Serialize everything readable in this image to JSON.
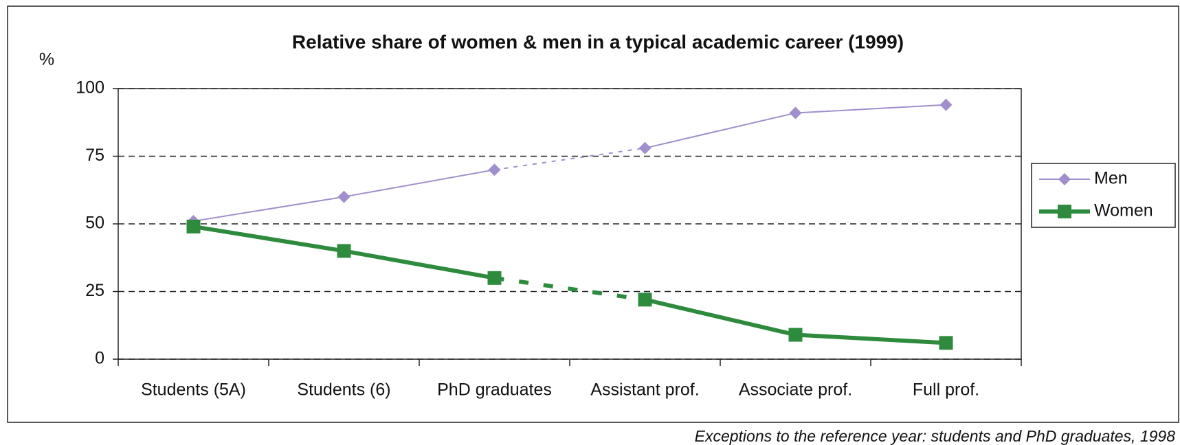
{
  "chart_data": {
    "type": "line",
    "title": "Relative share of women & men in a typical academic career (1999)",
    "ylabel": "%",
    "note": "Exceptions to the reference year: students and PhD graduates, 1998",
    "categories": [
      "Students (5A)",
      "Students (6)",
      "PhD graduates",
      "Assistant prof.",
      "Associate prof.",
      "Full prof."
    ],
    "series": [
      {
        "name": "Men",
        "color": "#a08fcc",
        "marker": "diamond",
        "width": 2,
        "values": [
          51,
          60,
          70,
          78,
          91,
          94
        ]
      },
      {
        "name": "Women",
        "color": "#2e8b3e",
        "marker": "square",
        "width": 6,
        "values": [
          49,
          40,
          30,
          22,
          9,
          6
        ]
      }
    ],
    "dashed_segment": [
      2,
      3
    ],
    "ylim": [
      0,
      100
    ],
    "yticks": [
      0,
      25,
      50,
      75,
      100
    ],
    "grid": true,
    "legend": "right"
  }
}
